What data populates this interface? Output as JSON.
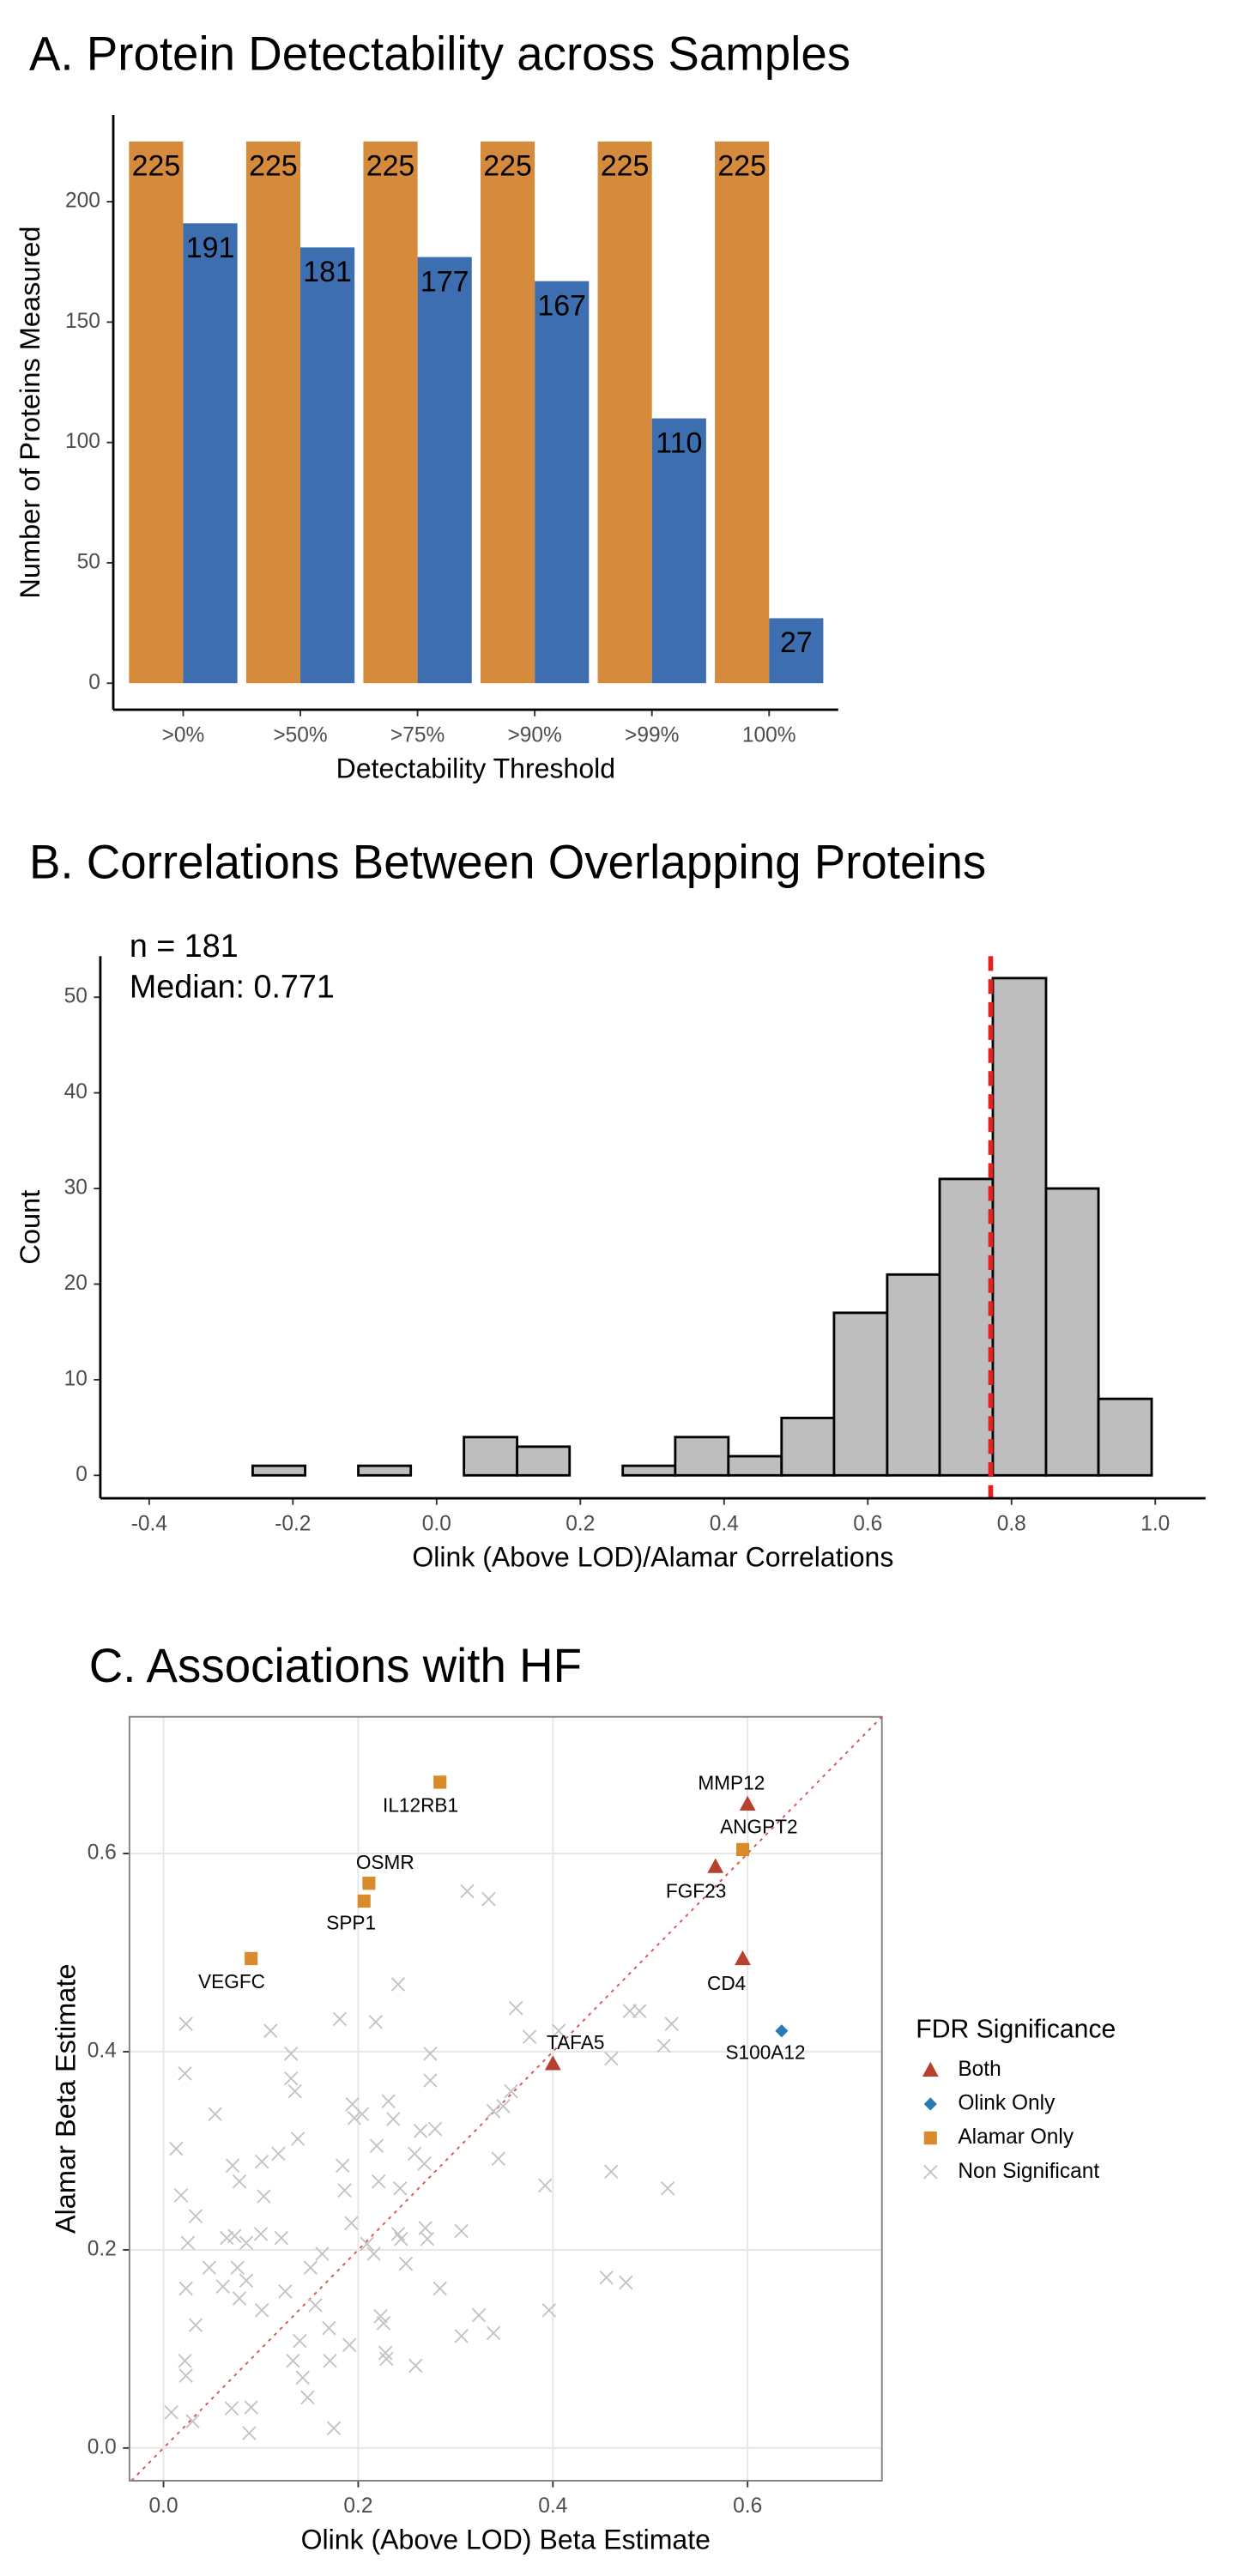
{
  "chart_data": [
    {
      "type": "bar",
      "title": "A. Protein Detectability across Samples",
      "x_label": "Detectability Threshold",
      "y_label": "Number of Proteins Measured",
      "categories": [
        ">0%",
        ">50%",
        ">75%",
        ">90%",
        ">99%",
        "100%"
      ],
      "series": [
        {
          "color": "#d68a3c",
          "values": [
            225,
            225,
            225,
            225,
            225,
            225
          ]
        },
        {
          "color": "#3d6fb0",
          "values": [
            191,
            181,
            177,
            167,
            110,
            27
          ]
        }
      ],
      "ylim": [
        -11,
        236
      ],
      "yticks": [
        0,
        50,
        100,
        150,
        200
      ]
    },
    {
      "type": "histogram",
      "title": "B. Correlations Between Overlapping Proteins",
      "x_label": "Olink (Above LOD)/Alamar Correlations",
      "y_label": "Count",
      "annotations": [
        "n = 181",
        "Median: 0.771"
      ],
      "median": 0.771,
      "median_color": "#e8201c",
      "bins": [
        -0.33,
        -0.256,
        -0.183,
        -0.109,
        -0.036,
        0.038,
        0.112,
        0.185,
        0.259,
        0.332,
        0.406,
        0.48,
        0.553,
        0.627,
        0.7,
        0.774,
        0.848,
        0.921,
        0.995
      ],
      "values": [
        0,
        1,
        0,
        1,
        0,
        4,
        3,
        0,
        1,
        4,
        2,
        6,
        17,
        21,
        31,
        52,
        30,
        8
      ],
      "color": "#bebebe",
      "xlim": [
        -0.468,
        1.07
      ],
      "xticks": [
        -0.4,
        -0.2,
        {
          "value": 0,
          "label": "0.0"
        },
        0.2,
        0.4,
        0.6,
        0.8,
        {
          "value": 1,
          "label": "1.0"
        }
      ],
      "ylim": [
        -2.4,
        54.3
      ],
      "yticks": [
        0,
        10,
        20,
        30,
        40,
        50
      ]
    },
    {
      "type": "scatter",
      "title": "C. Associations with HF",
      "x_label": "Olink (Above LOD) Beta Estimate",
      "y_label": "Alamar Beta Estimate",
      "legend_title": "FDR Significance",
      "grid": true,
      "identity_line": true,
      "xlim": [
        -0.035,
        0.738
      ],
      "ylim": [
        -0.033,
        0.738
      ],
      "xticks": [
        {
          "value": 0,
          "label": "0.0"
        },
        0.2,
        0.4,
        0.6
      ],
      "yticks": [
        {
          "value": 0,
          "label": "0.0"
        },
        0.2,
        0.4,
        0.6
      ],
      "series": [
        {
          "name": "Both",
          "color": "#b5412e",
          "marker": "triangle",
          "x": [
            0.6,
            0.567,
            0.595,
            0.4
          ],
          "y": [
            0.65,
            0.587,
            0.494,
            0.388
          ],
          "labels": [
            "MMP12",
            "FGF23",
            "CD4",
            "TAFA5"
          ]
        },
        {
          "name": "Olink Only",
          "color": "#2a7ab5",
          "marker": "diamond",
          "x": [
            0.635
          ],
          "y": [
            0.421
          ],
          "labels": [
            "S100A12"
          ]
        },
        {
          "name": "Alamar Only",
          "color": "#d98a2b",
          "marker": "square",
          "x": [
            0.284,
            0.595,
            0.211,
            0.206,
            0.09
          ],
          "y": [
            0.672,
            0.604,
            0.57,
            0.552,
            0.494
          ],
          "labels": [
            "IL12RB1",
            "ANGPT2",
            "OSMR",
            "SPP1",
            "VEGFC"
          ]
        },
        {
          "name": "Non Significant",
          "color": "#c4c4c4",
          "marker": "x",
          "x": [
            0.023,
            0.022,
            0.013,
            0.018,
            0.033,
            0.025,
            0.023,
            0.033,
            0.022,
            0.023,
            0.008,
            0.03,
            0.053,
            0.047,
            0.061,
            0.065,
            0.071,
            0.078,
            0.073,
            0.076,
            0.085,
            0.085,
            0.078,
            0.07,
            0.088,
            0.09,
            0.101,
            0.103,
            0.1,
            0.101,
            0.11,
            0.118,
            0.121,
            0.125,
            0.131,
            0.131,
            0.135,
            0.138,
            0.14,
            0.133,
            0.143,
            0.148,
            0.151,
            0.156,
            0.163,
            0.17,
            0.171,
            0.175,
            0.181,
            0.184,
            0.186,
            0.191,
            0.193,
            0.194,
            0.196,
            0.204,
            0.209,
            0.216,
            0.218,
            0.219,
            0.221,
            0.223,
            0.226,
            0.228,
            0.229,
            0.231,
            0.236,
            0.241,
            0.241,
            0.243,
            0.244,
            0.249,
            0.258,
            0.259,
            0.264,
            0.268,
            0.269,
            0.271,
            0.274,
            0.274,
            0.279,
            0.284,
            0.306,
            0.306,
            0.312,
            0.324,
            0.334,
            0.339,
            0.339,
            0.344,
            0.349,
            0.357,
            0.362,
            0.376,
            0.392,
            0.396,
            0.406,
            0.455,
            0.46,
            0.46,
            0.475,
            0.479,
            0.489,
            0.514,
            0.518,
            0.522
          ],
          "y": [
            0.428,
            0.378,
            0.302,
            0.255,
            0.234,
            0.207,
            0.161,
            0.124,
            0.088,
            0.073,
            0.036,
            0.027,
            0.337,
            0.182,
            0.163,
            0.212,
            0.285,
            0.269,
            0.214,
            0.182,
            0.207,
            0.169,
            0.151,
            0.04,
            0.015,
            0.041,
            0.289,
            0.254,
            0.216,
            0.139,
            0.421,
            0.297,
            0.212,
            0.158,
            0.398,
            0.373,
            0.36,
            0.312,
            0.108,
            0.088,
            0.071,
            0.051,
            0.182,
            0.144,
            0.196,
            0.121,
            0.088,
            0.02,
            0.433,
            0.285,
            0.26,
            0.104,
            0.227,
            0.347,
            0.333,
            0.337,
            0.206,
            0.196,
            0.43,
            0.305,
            0.269,
            0.133,
            0.126,
            0.096,
            0.09,
            0.35,
            0.332,
            0.468,
            0.216,
            0.262,
            0.211,
            0.186,
            0.297,
            0.083,
            0.32,
            0.287,
            0.222,
            0.211,
            0.371,
            0.398,
            0.322,
            0.161,
            0.219,
            0.113,
            0.562,
            0.134,
            0.554,
            0.34,
            0.116,
            0.292,
            0.345,
            0.36,
            0.444,
            0.415,
            0.265,
            0.139,
            0.421,
            0.172,
            0.393,
            0.279,
            0.167,
            0.441,
            0.441,
            0.406,
            0.262,
            0.428
          ]
        }
      ]
    }
  ]
}
